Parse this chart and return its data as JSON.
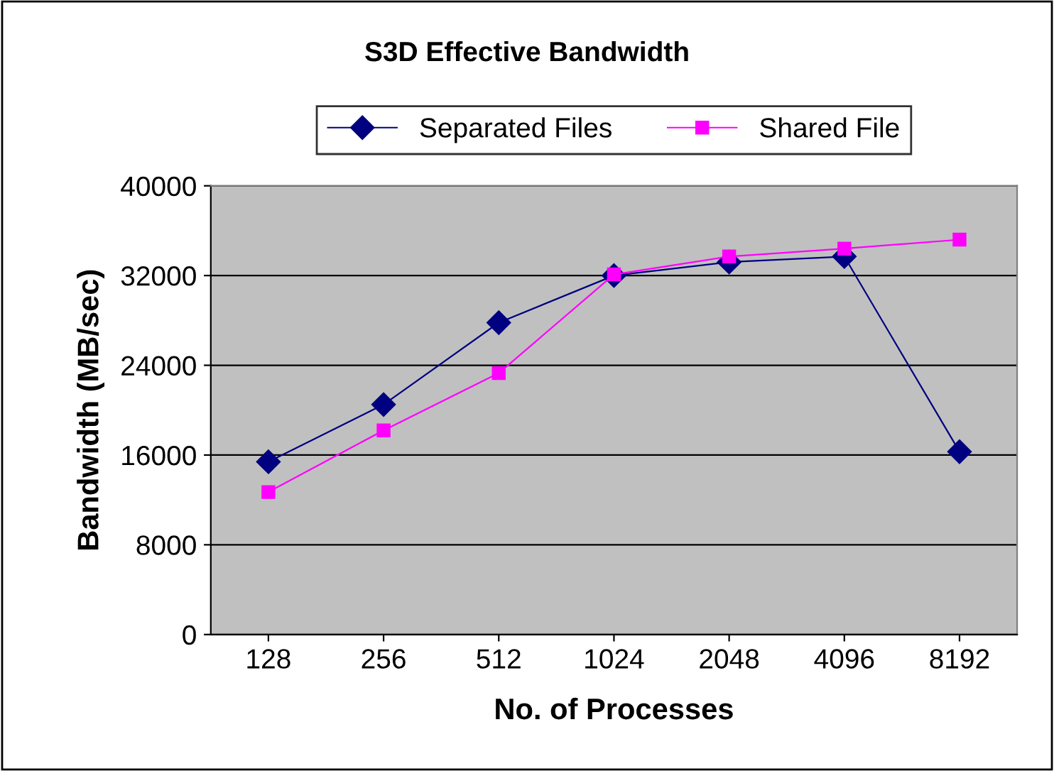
{
  "chart_data": {
    "type": "line",
    "title": "S3D Effective Bandwidth",
    "xlabel": "No. of Processes",
    "ylabel": "Bandwidth (MB/sec)",
    "categories": [
      "128",
      "256",
      "512",
      "1024",
      "2048",
      "4096",
      "8192"
    ],
    "series": [
      {
        "name": "Separated Files",
        "color": "#000080",
        "marker": "diamond",
        "values": [
          15400,
          20500,
          27800,
          32000,
          33200,
          33700,
          16300
        ]
      },
      {
        "name": "Shared File",
        "color": "#ff00ff",
        "marker": "square",
        "values": [
          12700,
          18200,
          23300,
          32100,
          33700,
          34400,
          35200
        ]
      }
    ],
    "ylim": [
      0,
      40000
    ],
    "yticks": [
      0,
      8000,
      16000,
      24000,
      32000,
      40000
    ],
    "grid": "y",
    "legend": "top",
    "line_style": "solid"
  }
}
